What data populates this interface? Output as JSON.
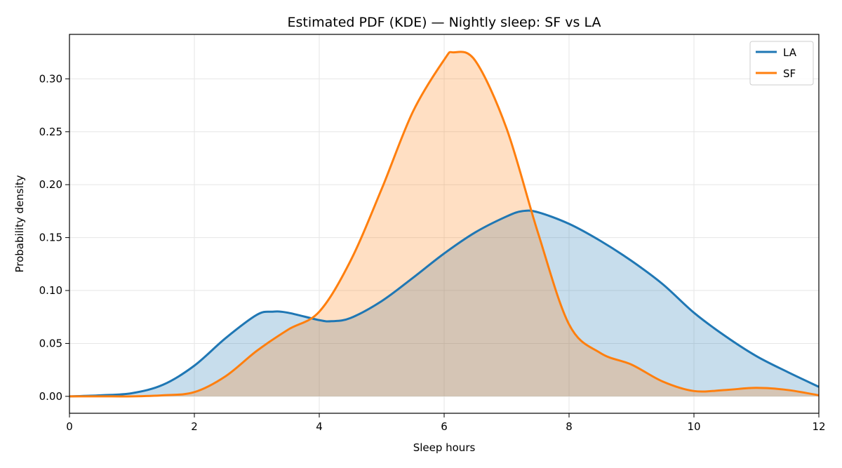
{
  "chart_data": {
    "type": "area",
    "title": "Estimated PDF (KDE) — Nightly sleep: SF vs LA",
    "xlabel": "Sleep hours",
    "ylabel": "Probability density",
    "xlim": [
      0,
      12
    ],
    "ylim": [
      -0.016,
      0.342
    ],
    "xticks": [
      0,
      2,
      4,
      6,
      8,
      10,
      12
    ],
    "xtick_labels": [
      "0",
      "2",
      "4",
      "6",
      "8",
      "10",
      "12"
    ],
    "yticks": [
      0.0,
      0.05,
      0.1,
      0.15,
      0.2,
      0.25,
      0.3
    ],
    "ytick_labels": [
      "0.00",
      "0.05",
      "0.10",
      "0.15",
      "0.20",
      "0.25",
      "0.30"
    ],
    "grid": true,
    "legend_position": "top-right",
    "series": [
      {
        "name": "LA",
        "color": "#1f77b4",
        "fill": "#1f77b4",
        "x": [
          0,
          0.5,
          1,
          1.5,
          2,
          2.5,
          3,
          3.25,
          3.5,
          4,
          4.2,
          4.5,
          5,
          5.5,
          6,
          6.5,
          7,
          7.25,
          7.5,
          8,
          8.5,
          9,
          9.5,
          10,
          10.5,
          11,
          11.5,
          12
        ],
        "y": [
          0.0,
          0.001,
          0.003,
          0.011,
          0.029,
          0.055,
          0.077,
          0.08,
          0.079,
          0.072,
          0.071,
          0.074,
          0.09,
          0.112,
          0.135,
          0.155,
          0.17,
          0.175,
          0.174,
          0.163,
          0.147,
          0.128,
          0.106,
          0.079,
          0.057,
          0.038,
          0.023,
          0.009
        ]
      },
      {
        "name": "SF",
        "color": "#ff7f0e",
        "fill": "#ff7f0e",
        "x": [
          0,
          0.5,
          1,
          1.5,
          2,
          2.5,
          3,
          3.5,
          4,
          4.5,
          5,
          5.5,
          6,
          6.15,
          6.5,
          7,
          7.5,
          8,
          8.5,
          9,
          9.5,
          10,
          10.5,
          11,
          11.5,
          12
        ],
        "y": [
          0.0,
          0.0,
          0.0,
          0.001,
          0.004,
          0.019,
          0.043,
          0.063,
          0.08,
          0.128,
          0.196,
          0.269,
          0.318,
          0.325,
          0.317,
          0.253,
          0.155,
          0.068,
          0.041,
          0.03,
          0.014,
          0.005,
          0.006,
          0.008,
          0.006,
          0.001
        ]
      }
    ]
  }
}
